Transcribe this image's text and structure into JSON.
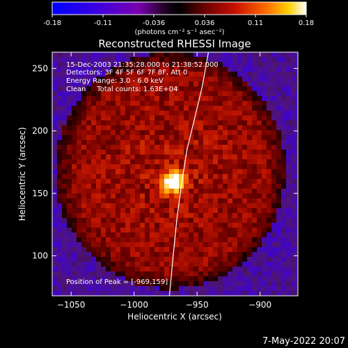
{
  "colorbar": {
    "ticks": [
      "-0.18",
      "-0.11",
      "-0.036",
      "0.036",
      "0.11",
      "0.18"
    ],
    "unit_label": "(photons cm⁻² s⁻¹ asec⁻²)"
  },
  "chart_data": {
    "type": "heatmap",
    "title": "Reconstructed RHESSI Image",
    "xlabel": "Heliocentric X (arcsec)",
    "ylabel": "Heliocentric Y (arcsec)",
    "xlim": [
      -1065,
      -870
    ],
    "ylim": [
      68,
      263
    ],
    "x_ticks": [
      {
        "value": -1050,
        "label": "−1050"
      },
      {
        "value": -1000,
        "label": "−1000"
      },
      {
        "value": -950,
        "label": "−950"
      },
      {
        "value": -900,
        "label": "−900"
      }
    ],
    "y_ticks": [
      {
        "value": 100,
        "label": "100"
      },
      {
        "value": 150,
        "label": "150"
      },
      {
        "value": 200,
        "label": "200"
      },
      {
        "value": 250,
        "label": "250"
      }
    ],
    "color_range": [
      -0.18,
      0.18
    ],
    "peak": {
      "x": -969,
      "y": 159
    },
    "limb_curve": [
      {
        "x": -972,
        "y": 68
      },
      {
        "x": -969,
        "y": 100
      },
      {
        "x": -966,
        "y": 130
      },
      {
        "x": -962,
        "y": 160
      },
      {
        "x": -958,
        "y": 185
      },
      {
        "x": -952,
        "y": 210
      },
      {
        "x": -946,
        "y": 235
      },
      {
        "x": -941,
        "y": 263
      }
    ],
    "annotations": [
      "15-Dec-2003 21:35:28.000 to 21:38:52.000",
      "Detectors: 3F 4F 5F 6F 7F 8F, Att 0",
      "Energy Range: 3.0 - 6.0 keV",
      "Clean     Total counts: 1.63E+04"
    ],
    "peak_label": "Position of Peak = [-969,159]"
  },
  "footer": {
    "date": "7-May-2022 20:07"
  }
}
